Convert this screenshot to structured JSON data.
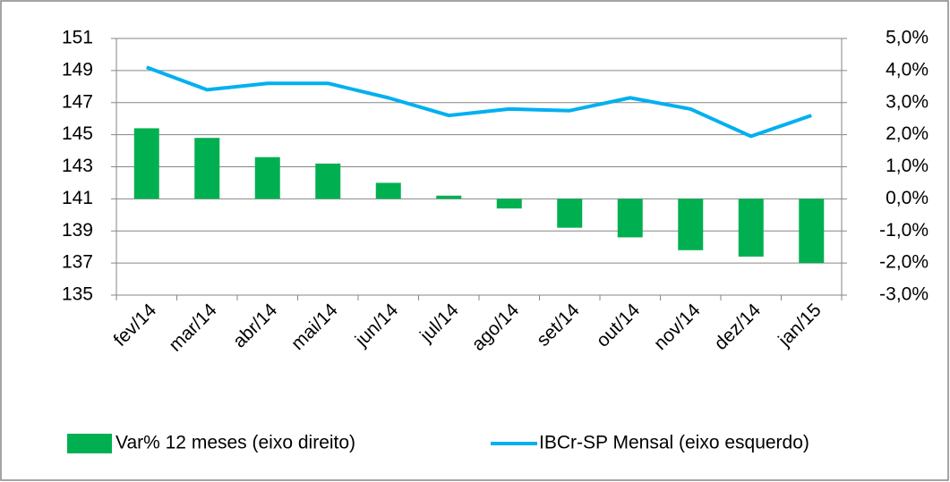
{
  "chart_data": {
    "type": "bar_line",
    "categories": [
      "fev/14",
      "mar/14",
      "abr/14",
      "mai/14",
      "jun/14",
      "jul/14",
      "ago/14",
      "set/14",
      "out/14",
      "nov/14",
      "dez/14",
      "jan/15"
    ],
    "series": [
      {
        "name": "Var% 12 meses (eixo direito)",
        "type": "bar",
        "axis": "y2",
        "color": "#00b050",
        "values": [
          2.2,
          1.9,
          1.3,
          1.1,
          0.5,
          0.1,
          -0.3,
          -0.9,
          -1.2,
          -1.6,
          -1.8,
          -2.0
        ]
      },
      {
        "name": "IBCr-SP Mensal (eixo esquerdo)",
        "type": "line",
        "axis": "y",
        "color": "#00b0f0",
        "values": [
          149.2,
          147.8,
          148.2,
          148.2,
          147.3,
          146.2,
          146.6,
          146.5,
          147.3,
          146.6,
          144.9,
          146.2
        ]
      }
    ],
    "ylim": [
      135,
      151
    ],
    "yticks": [
      135,
      137,
      139,
      141,
      143,
      145,
      147,
      149,
      151
    ],
    "y2lim": [
      -3,
      5
    ],
    "y2ticks": [
      {
        "value": -3,
        "label": "-3,0%"
      },
      {
        "value": -2,
        "label": "-2,0%"
      },
      {
        "value": -1,
        "label": "-1,0%"
      },
      {
        "value": 0,
        "label": "0,0%"
      },
      {
        "value": 1,
        "label": "1,0%"
      },
      {
        "value": 2,
        "label": "2,0%"
      },
      {
        "value": 3,
        "label": "3,0%"
      },
      {
        "value": 4,
        "label": "4,0%"
      },
      {
        "value": 5,
        "label": "5,0%"
      }
    ],
    "grid": true,
    "legend": "bottom"
  }
}
